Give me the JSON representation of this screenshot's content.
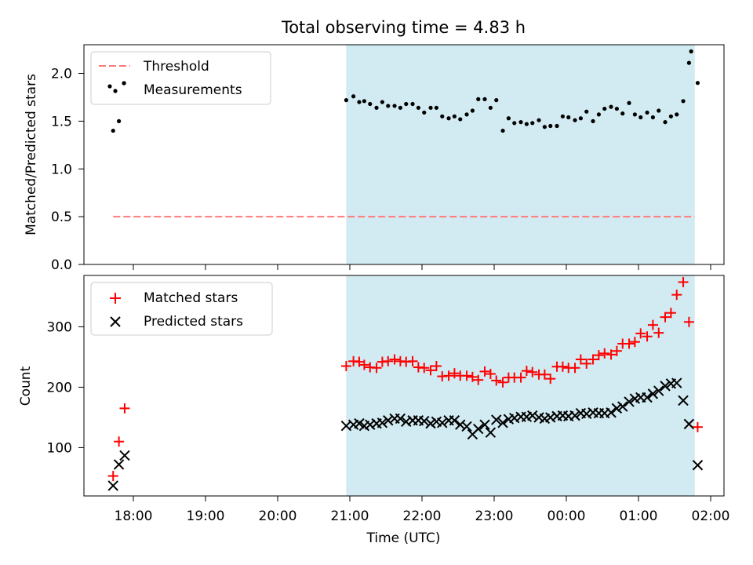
{
  "title": "Total observing time = 4.83 h",
  "xlabel": "Time (UTC)",
  "x_tick_labels": [
    "18:00",
    "19:00",
    "20:00",
    "21:00",
    "22:00",
    "23:00",
    "00:00",
    "01:00",
    "02:00"
  ],
  "colors": {
    "shade": "#add8e6",
    "threshold": "#ff7a7a",
    "measurement": "#000000",
    "matched": "#ff0000",
    "predicted": "#000000"
  },
  "chart_data": [
    {
      "type": "scatter",
      "panel": "top",
      "ylabel": "Matched/Predicted stars",
      "ylim": [
        0,
        2.3
      ],
      "yticks": [
        "0.0",
        "0.5",
        "1.0",
        "1.5",
        "2.0"
      ],
      "x_unit": "hours after 18:00 UTC",
      "shaded_span": [
        2.95,
        7.78
      ],
      "legend": {
        "placement": "upper-left",
        "entries": [
          "Threshold",
          "Measurements"
        ]
      },
      "threshold": {
        "name": "Threshold",
        "y": 0.5,
        "x_range": [
          -0.28,
          7.78
        ]
      },
      "series": [
        {
          "name": "Measurements",
          "points": [
            [
              -0.28,
              1.4
            ],
            [
              -0.25,
              1.82
            ],
            [
              -0.2,
              1.5
            ],
            [
              -0.12,
              1.9
            ],
            [
              2.95,
              1.72
            ],
            [
              3.05,
              1.76
            ],
            [
              3.13,
              1.7
            ],
            [
              3.2,
              1.71
            ],
            [
              3.28,
              1.68
            ],
            [
              3.37,
              1.64
            ],
            [
              3.45,
              1.7
            ],
            [
              3.53,
              1.66
            ],
            [
              3.62,
              1.66
            ],
            [
              3.7,
              1.64
            ],
            [
              3.78,
              1.68
            ],
            [
              3.87,
              1.68
            ],
            [
              3.95,
              1.64
            ],
            [
              4.03,
              1.59
            ],
            [
              4.12,
              1.64
            ],
            [
              4.2,
              1.64
            ],
            [
              4.28,
              1.55
            ],
            [
              4.37,
              1.53
            ],
            [
              4.45,
              1.55
            ],
            [
              4.53,
              1.52
            ],
            [
              4.62,
              1.57
            ],
            [
              4.7,
              1.61
            ],
            [
              4.78,
              1.73
            ],
            [
              4.87,
              1.73
            ],
            [
              4.95,
              1.64
            ],
            [
              5.03,
              1.72
            ],
            [
              5.12,
              1.4
            ],
            [
              5.2,
              1.53
            ],
            [
              5.28,
              1.48
            ],
            [
              5.37,
              1.49
            ],
            [
              5.45,
              1.47
            ],
            [
              5.53,
              1.48
            ],
            [
              5.62,
              1.51
            ],
            [
              5.7,
              1.44
            ],
            [
              5.78,
              1.45
            ],
            [
              5.87,
              1.45
            ],
            [
              5.95,
              1.55
            ],
            [
              6.03,
              1.54
            ],
            [
              6.12,
              1.51
            ],
            [
              6.2,
              1.53
            ],
            [
              6.28,
              1.6
            ],
            [
              6.37,
              1.5
            ],
            [
              6.45,
              1.57
            ],
            [
              6.53,
              1.63
            ],
            [
              6.62,
              1.65
            ],
            [
              6.7,
              1.63
            ],
            [
              6.78,
              1.58
            ],
            [
              6.87,
              1.69
            ],
            [
              6.95,
              1.57
            ],
            [
              7.03,
              1.54
            ],
            [
              7.12,
              1.59
            ],
            [
              7.2,
              1.54
            ],
            [
              7.28,
              1.61
            ],
            [
              7.37,
              1.49
            ],
            [
              7.45,
              1.55
            ],
            [
              7.53,
              1.57
            ],
            [
              7.62,
              1.71
            ],
            [
              7.7,
              2.11
            ],
            [
              7.73,
              2.23
            ],
            [
              7.82,
              1.9
            ]
          ]
        }
      ]
    },
    {
      "type": "scatter",
      "panel": "bottom",
      "ylabel": "Count",
      "ylim": [
        20,
        385
      ],
      "yticks": [
        "100",
        "200",
        "300"
      ],
      "x_unit": "hours after 18:00 UTC",
      "shaded_span": [
        2.95,
        7.78
      ],
      "legend": {
        "placement": "upper-left",
        "entries": [
          "Matched stars",
          "Predicted stars"
        ]
      },
      "series": [
        {
          "name": "Matched stars",
          "marker": "plus",
          "points": [
            [
              -0.28,
              53
            ],
            [
              -0.2,
              110
            ],
            [
              -0.12,
              165
            ],
            [
              2.95,
              235
            ],
            [
              3.05,
              243
            ],
            [
              3.13,
              242
            ],
            [
              3.2,
              237
            ],
            [
              3.28,
              233
            ],
            [
              3.37,
              232
            ],
            [
              3.45,
              242
            ],
            [
              3.53,
              243
            ],
            [
              3.62,
              246
            ],
            [
              3.7,
              243
            ],
            [
              3.78,
              242
            ],
            [
              3.87,
              243
            ],
            [
              3.95,
              233
            ],
            [
              4.03,
              232
            ],
            [
              4.12,
              228
            ],
            [
              4.2,
              235
            ],
            [
              4.28,
              218
            ],
            [
              4.37,
              219
            ],
            [
              4.45,
              223
            ],
            [
              4.53,
              219
            ],
            [
              4.62,
              219
            ],
            [
              4.7,
              217
            ],
            [
              4.78,
              212
            ],
            [
              4.87,
              226
            ],
            [
              4.95,
              222
            ],
            [
              5.03,
              211
            ],
            [
              5.12,
              208
            ],
            [
              5.2,
              216
            ],
            [
              5.28,
              216
            ],
            [
              5.37,
              216
            ],
            [
              5.45,
              227
            ],
            [
              5.53,
              225
            ],
            [
              5.62,
              221
            ],
            [
              5.7,
              221
            ],
            [
              5.78,
              214
            ],
            [
              5.87,
              234
            ],
            [
              5.95,
              234
            ],
            [
              6.03,
              232
            ],
            [
              6.12,
              232
            ],
            [
              6.2,
              246
            ],
            [
              6.28,
              239
            ],
            [
              6.37,
              246
            ],
            [
              6.45,
              253
            ],
            [
              6.53,
              256
            ],
            [
              6.62,
              254
            ],
            [
              6.7,
              260
            ],
            [
              6.78,
              272
            ],
            [
              6.87,
              272
            ],
            [
              6.95,
              275
            ],
            [
              7.03,
              289
            ],
            [
              7.12,
              284
            ],
            [
              7.2,
              303
            ],
            [
              7.28,
              290
            ],
            [
              7.37,
              316
            ],
            [
              7.45,
              323
            ],
            [
              7.53,
              353
            ],
            [
              7.62,
              374
            ],
            [
              7.7,
              308
            ],
            [
              7.82,
              134
            ]
          ]
        },
        {
          "name": "Predicted stars",
          "marker": "x",
          "points": [
            [
              -0.28,
              37
            ],
            [
              -0.2,
              72
            ],
            [
              -0.12,
              87
            ],
            [
              2.95,
              136
            ],
            [
              3.05,
              138
            ],
            [
              3.13,
              140
            ],
            [
              3.2,
              136
            ],
            [
              3.28,
              138
            ],
            [
              3.37,
              140
            ],
            [
              3.45,
              141
            ],
            [
              3.53,
              145
            ],
            [
              3.62,
              148
            ],
            [
              3.7,
              148
            ],
            [
              3.78,
              143
            ],
            [
              3.87,
              145
            ],
            [
              3.95,
              145
            ],
            [
              4.03,
              144
            ],
            [
              4.12,
              140
            ],
            [
              4.2,
              143
            ],
            [
              4.28,
              141
            ],
            [
              4.37,
              145
            ],
            [
              4.45,
              145
            ],
            [
              4.53,
              138
            ],
            [
              4.62,
              135
            ],
            [
              4.7,
              122
            ],
            [
              4.78,
              131
            ],
            [
              4.87,
              138
            ],
            [
              4.95,
              125
            ],
            [
              5.03,
              146
            ],
            [
              5.12,
              141
            ],
            [
              5.2,
              147
            ],
            [
              5.28,
              149
            ],
            [
              5.37,
              151
            ],
            [
              5.45,
              151
            ],
            [
              5.53,
              153
            ],
            [
              5.62,
              150
            ],
            [
              5.7,
              148
            ],
            [
              5.78,
              150
            ],
            [
              5.87,
              152
            ],
            [
              5.95,
              153
            ],
            [
              6.03,
              152
            ],
            [
              6.12,
              153
            ],
            [
              6.2,
              157
            ],
            [
              6.28,
              156
            ],
            [
              6.37,
              158
            ],
            [
              6.45,
              157
            ],
            [
              6.53,
              157
            ],
            [
              6.62,
              158
            ],
            [
              6.7,
              165
            ],
            [
              6.78,
              168
            ],
            [
              6.87,
              176
            ],
            [
              6.95,
              181
            ],
            [
              7.03,
              183
            ],
            [
              7.12,
              183
            ],
            [
              7.2,
              189
            ],
            [
              7.28,
              194
            ],
            [
              7.37,
              202
            ],
            [
              7.45,
              206
            ],
            [
              7.53,
              207
            ],
            [
              7.62,
              178
            ],
            [
              7.7,
              139
            ],
            [
              7.82,
              71
            ]
          ]
        }
      ]
    }
  ]
}
